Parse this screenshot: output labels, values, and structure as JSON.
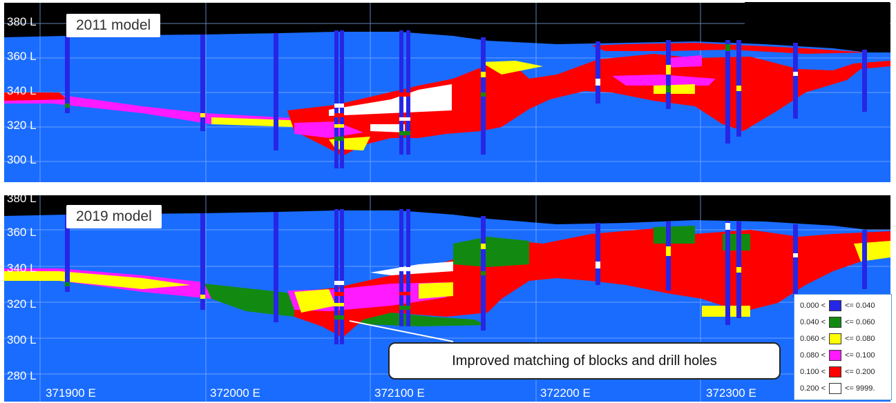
{
  "top_panel": {
    "model_label": "2011 model",
    "elevations": [
      "380 L",
      "360 L",
      "340 L",
      "320 L",
      "300 L"
    ]
  },
  "bottom_panel": {
    "model_label": "2019 model",
    "elevations": [
      "380 L",
      "360 L",
      "340 L",
      "320 L",
      "300 L",
      "280 L"
    ],
    "eastings": [
      "371900 E",
      "372000 E",
      "372100 E",
      "372200 E",
      "372300 E"
    ]
  },
  "callout": {
    "text": "Improved matching of blocks and drill holes"
  },
  "legend": {
    "items": [
      {
        "low": "0.000 <",
        "high": "<= 0.040",
        "color": "#2626e6"
      },
      {
        "low": "0.040 <",
        "high": "<= 0.060",
        "color": "#128a12"
      },
      {
        "low": "0.060 <",
        "high": "<= 0.080",
        "color": "#ffff00"
      },
      {
        "low": "0.080 <",
        "high": "<= 0.100",
        "color": "#ff1aff"
      },
      {
        "low": "0.100 <",
        "high": "<= 0.200",
        "color": "#ff0000"
      },
      {
        "low": "0.200 <",
        "high": "<= 9999.",
        "color": "#ffffff"
      }
    ]
  },
  "colors": {
    "background_blue": "#1a6cff",
    "sky": "#000000",
    "drillhole": "#2626e6"
  }
}
